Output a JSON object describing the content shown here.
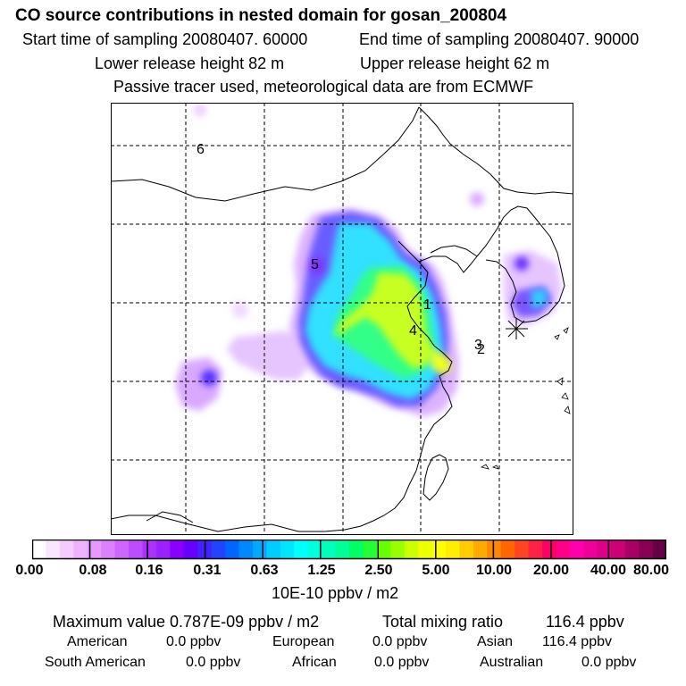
{
  "header": {
    "title": "CO  source contributions in nested domain for gosan_200804",
    "start_time": "Start time of sampling 20080407. 60000",
    "end_time": "End time of sampling 20080407. 90000",
    "lower_height": "Lower release height   82 m",
    "upper_height": "Upper release height   62 m",
    "tracer_note": "Passive tracer used, meteorological data are from ECMWF"
  },
  "map": {
    "region_labels": [
      "1",
      "2",
      "3",
      "4",
      "5",
      "6"
    ],
    "receptor": "gosan"
  },
  "colorbar": {
    "ticks": [
      "0.00",
      "0.08",
      "0.16",
      "0.31",
      "0.63",
      "1.25",
      "2.50",
      "5.00",
      "10.00",
      "20.00",
      "40.00",
      "80.00"
    ],
    "colors": [
      "#ffffff",
      "#fbe6ff",
      "#f5ccff",
      "#eeb2ff",
      "#e699ff",
      "#dd80ff",
      "#cc66ff",
      "#bb4dff",
      "#aa33ff",
      "#9922ff",
      "#8800ff",
      "#6600ff",
      "#4422ff",
      "#2244ff",
      "#0066ff",
      "#0088ff",
      "#00aaff",
      "#00ccff",
      "#00e5ff",
      "#00ffff",
      "#00ffdd",
      "#00ffbb",
      "#00ff99",
      "#00ff66",
      "#22ff33",
      "#66ff00",
      "#99ff00",
      "#ccff00",
      "#eeff00",
      "#ffff00",
      "#ffee00",
      "#ffcc00",
      "#ffaa00",
      "#ff8800",
      "#ff6600",
      "#ff4422",
      "#ff2244",
      "#ff0066",
      "#ff0088",
      "#ff00aa",
      "#ee0099",
      "#dd0088",
      "#cc0077",
      "#aa0066",
      "#880055",
      "#660044"
    ],
    "unit": "10E-10 ppbv / m2"
  },
  "summary": {
    "max_label": "Maximum value  0.787E-09 ppbv / m2",
    "total_label": "Total mixing ratio",
    "total_value": "116.4 ppbv",
    "sources": [
      {
        "name": "American",
        "value": "0.0 ppbv"
      },
      {
        "name": "European",
        "value": "0.0 ppbv"
      },
      {
        "name": "Asian",
        "value": "116.4 ppbv"
      },
      {
        "name": "South American",
        "value": "0.0 ppbv"
      },
      {
        "name": "African",
        "value": "0.0 ppbv"
      },
      {
        "name": "Australian",
        "value": "0.0 ppbv"
      }
    ]
  }
}
